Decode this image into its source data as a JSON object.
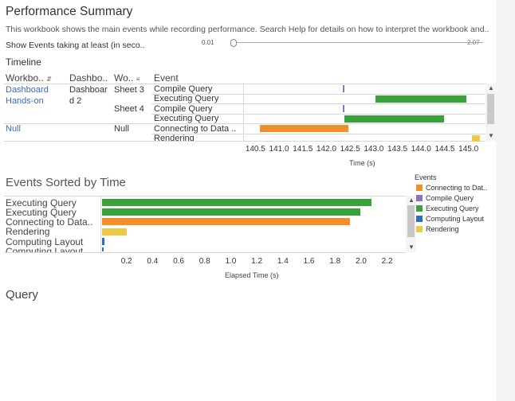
{
  "header": {
    "title": "Performance Summary",
    "description": "This workbook shows the main events while recording performance. Search Help for details on how to interpret the workbook and..",
    "filter_label": "Show Events taking at least (in seco..",
    "slider_min": "0.01",
    "slider_max": "2.07"
  },
  "timeline": {
    "title": "Timeline",
    "columns": [
      "Workbo..",
      "Dashbo..",
      "Wo..",
      "Event"
    ],
    "workbooks": [
      "Dashboard",
      "Hands-on",
      "Null"
    ],
    "dashboards": [
      "Dashboar",
      "d 2",
      "Null"
    ],
    "worksheets": [
      "Sheet 3",
      "Sheet 4"
    ],
    "events": [
      "Compile Query",
      "Executing Query",
      "Compile Query",
      "Executing Query",
      "Connecting to Data ..",
      "Rendering"
    ],
    "ticks": [
      "140.5",
      "141.0",
      "141.5",
      "142.0",
      "142.5",
      "143.0",
      "143.5",
      "144.0",
      "144.5",
      "145.0"
    ],
    "axis_title": "Time (s)"
  },
  "sorted": {
    "title": "Events Sorted by Time",
    "labels": [
      "Executing Query",
      "Executing Query",
      "Connecting to Data..",
      "Rendering",
      "Computing Layout",
      "Computing Layout"
    ],
    "ticks": [
      "0.2",
      "0.4",
      "0.6",
      "0.8",
      "1.0",
      "1.2",
      "1.4",
      "1.6",
      "1.8",
      "2.0",
      "2.2"
    ],
    "axis_title": "Elapsed Time (s)"
  },
  "legend": {
    "title": "Events",
    "items": [
      {
        "label": "Connecting to Dat..",
        "color": "#f28e2b"
      },
      {
        "label": "Compile Query",
        "color": "#8e6fc6"
      },
      {
        "label": "Executing Query",
        "color": "#3ba13a"
      },
      {
        "label": "Computing Layout",
        "color": "#2f6fb5"
      },
      {
        "label": "Rendering",
        "color": "#edc948"
      }
    ]
  },
  "query": {
    "title": "Query"
  },
  "chart_data": [
    {
      "type": "bar",
      "orientation": "horizontal-gantt",
      "xlabel": "Time (s)",
      "xlim": [
        140.2,
        145.3
      ],
      "rows": [
        {
          "event": "Compile Query",
          "start": 142.3,
          "end": 142.32,
          "color": "#8e6fc6"
        },
        {
          "event": "Executing Query",
          "start": 143.0,
          "end": 144.92,
          "color": "#3ba13a"
        },
        {
          "event": "Compile Query",
          "start": 142.3,
          "end": 142.32,
          "color": "#8e6fc6"
        },
        {
          "event": "Executing Query",
          "start": 142.33,
          "end": 144.45,
          "color": "#3ba13a"
        },
        {
          "event": "Connecting to Data ..",
          "start": 140.55,
          "end": 142.42,
          "color": "#f28e2b"
        },
        {
          "event": "Rendering",
          "start": 145.03,
          "end": 145.2,
          "color": "#edc948"
        }
      ]
    },
    {
      "type": "bar",
      "orientation": "horizontal",
      "xlabel": "Elapsed Time (s)",
      "xlim": [
        0,
        2.3
      ],
      "categories": [
        "Executing Query",
        "Executing Query",
        "Connecting to Data..",
        "Rendering",
        "Computing Layout",
        "Computing Layout"
      ],
      "values": [
        2.07,
        1.98,
        1.9,
        0.19,
        0.02,
        0.01
      ],
      "colors": [
        "#3ba13a",
        "#3ba13a",
        "#f28e2b",
        "#edc948",
        "#2f6fb5",
        "#2f6fb5"
      ]
    }
  ]
}
